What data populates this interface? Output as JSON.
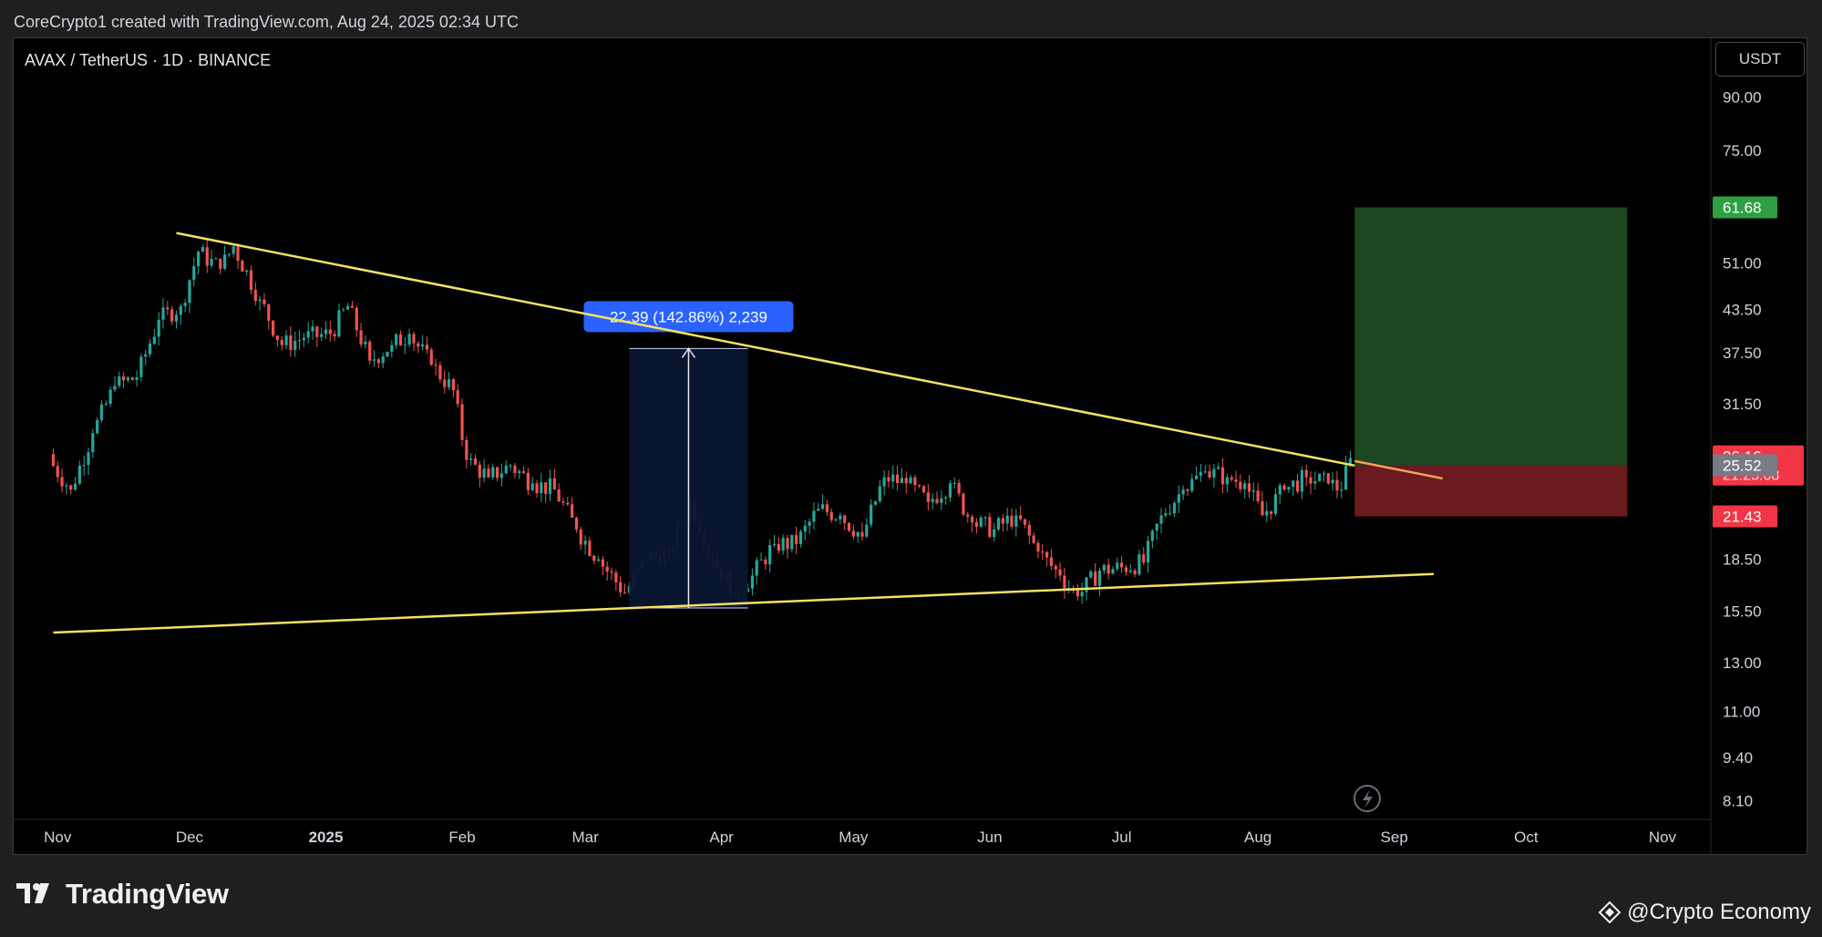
{
  "header": {
    "text": "CoreCrypto1 created with TradingView.com, Aug 24, 2025 02:34 UTC"
  },
  "symbol": {
    "title": "AVAX / TetherUS · 1D · BINANCE",
    "currency": "USDT"
  },
  "branding": {
    "logo_text": "TradingView",
    "credit_text": "@Crypto Economy"
  },
  "colors": {
    "up": "#26a69a",
    "down": "#ef5350",
    "trendline": "#f5e063",
    "profit_zone": "#1e4620",
    "loss_zone": "#6b1a1f",
    "measure_label": "#2962ff"
  },
  "chart_data": {
    "type": "candlestick",
    "y_scale": "log",
    "ylim": [
      7.6,
      110
    ],
    "y_ticks": [
      "90.00",
      "75.00",
      "61.68",
      "51.00",
      "43.50",
      "37.50",
      "31.50",
      "26.16",
      "25.52",
      "21.43",
      "18.50",
      "15.50",
      "13.00",
      "11.00",
      "9.40",
      "8.10"
    ],
    "x_ticks": [
      "Nov",
      "Dec",
      "2025",
      "Feb",
      "Mar",
      "Apr",
      "May",
      "Jun",
      "Jul",
      "Aug",
      "Sep",
      "Oct",
      "Nov"
    ],
    "price_labels": [
      {
        "value": "61.68",
        "kind": "target",
        "color": "#2ea043"
      },
      {
        "value": "26.16",
        "sub": "21:25:08",
        "kind": "last",
        "color": "#f23645"
      },
      {
        "value": "25.52",
        "kind": "entry",
        "color": "#787b86"
      },
      {
        "value": "21.43",
        "kind": "stop",
        "color": "#f23645"
      }
    ],
    "measure": {
      "label": "22.39 (142.86%) 2,239",
      "from_date": "2025-03-11",
      "to_date": "2025-04-07",
      "low": 15.67,
      "high": 38.06
    },
    "trendlines": [
      {
        "name": "upper",
        "from": [
          "2024-11-28",
          56.5
        ],
        "to": [
          "2025-08-23",
          25.5
        ]
      },
      {
        "name": "lower",
        "from": [
          "2024-10-31",
          14.4
        ],
        "to": [
          "2025-09-10",
          17.6
        ]
      }
    ],
    "position": {
      "entry": 25.52,
      "target": 61.68,
      "stop": 21.43,
      "from_date": "2025-08-23",
      "to_date": "2025-10-24"
    },
    "series_close": [
      {
        "date": "2024-10-31",
        "close": 26.0
      },
      {
        "date": "2024-11-05",
        "close": 23.5
      },
      {
        "date": "2024-11-10",
        "close": 28.5
      },
      {
        "date": "2024-11-15",
        "close": 33.5
      },
      {
        "date": "2024-11-20",
        "close": 34.5
      },
      {
        "date": "2024-11-25",
        "close": 42.0
      },
      {
        "date": "2024-11-30",
        "close": 44.0
      },
      {
        "date": "2024-12-04",
        "close": 53.0
      },
      {
        "date": "2024-12-09",
        "close": 50.0
      },
      {
        "date": "2024-12-12",
        "close": 54.0
      },
      {
        "date": "2024-12-18",
        "close": 45.0
      },
      {
        "date": "2024-12-23",
        "close": 38.5
      },
      {
        "date": "2024-12-28",
        "close": 39.5
      },
      {
        "date": "2025-01-03",
        "close": 40.0
      },
      {
        "date": "2025-01-07",
        "close": 44.0
      },
      {
        "date": "2025-01-12",
        "close": 36.5
      },
      {
        "date": "2025-01-17",
        "close": 38.5
      },
      {
        "date": "2025-01-21",
        "close": 40.0
      },
      {
        "date": "2025-01-26",
        "close": 36.0
      },
      {
        "date": "2025-01-31",
        "close": 33.0
      },
      {
        "date": "2025-02-03",
        "close": 26.0
      },
      {
        "date": "2025-02-08",
        "close": 24.5
      },
      {
        "date": "2025-02-13",
        "close": 25.5
      },
      {
        "date": "2025-02-18",
        "close": 24.0
      },
      {
        "date": "2025-02-23",
        "close": 23.5
      },
      {
        "date": "2025-02-28",
        "close": 20.5
      },
      {
        "date": "2025-03-05",
        "close": 18.5
      },
      {
        "date": "2025-03-11",
        "close": 16.5
      },
      {
        "date": "2025-03-16",
        "close": 18.5
      },
      {
        "date": "2025-03-21",
        "close": 19.0
      },
      {
        "date": "2025-03-26",
        "close": 22.5
      },
      {
        "date": "2025-03-31",
        "close": 18.5
      },
      {
        "date": "2025-04-05",
        "close": 16.5
      },
      {
        "date": "2025-04-09",
        "close": 17.5
      },
      {
        "date": "2025-04-14",
        "close": 19.5
      },
      {
        "date": "2025-04-19",
        "close": 19.5
      },
      {
        "date": "2025-04-24",
        "close": 22.0
      },
      {
        "date": "2025-04-29",
        "close": 21.5
      },
      {
        "date": "2025-05-04",
        "close": 20.0
      },
      {
        "date": "2025-05-09",
        "close": 24.5
      },
      {
        "date": "2025-05-14",
        "close": 24.0
      },
      {
        "date": "2025-05-19",
        "close": 22.5
      },
      {
        "date": "2025-05-24",
        "close": 24.0
      },
      {
        "date": "2025-05-29",
        "close": 21.0
      },
      {
        "date": "2025-06-03",
        "close": 20.5
      },
      {
        "date": "2025-06-08",
        "close": 21.5
      },
      {
        "date": "2025-06-13",
        "close": 19.0
      },
      {
        "date": "2025-06-18",
        "close": 17.5
      },
      {
        "date": "2025-06-22",
        "close": 16.3
      },
      {
        "date": "2025-06-27",
        "close": 17.8
      },
      {
        "date": "2025-07-02",
        "close": 18.0
      },
      {
        "date": "2025-07-07",
        "close": 18.3
      },
      {
        "date": "2025-07-11",
        "close": 21.5
      },
      {
        "date": "2025-07-16",
        "close": 23.5
      },
      {
        "date": "2025-07-21",
        "close": 25.0
      },
      {
        "date": "2025-07-26",
        "close": 24.5
      },
      {
        "date": "2025-07-30",
        "close": 24.0
      },
      {
        "date": "2025-08-03",
        "close": 21.5
      },
      {
        "date": "2025-08-08",
        "close": 23.5
      },
      {
        "date": "2025-08-13",
        "close": 24.5
      },
      {
        "date": "2025-08-18",
        "close": 24.0
      },
      {
        "date": "2025-08-21",
        "close": 23.5
      },
      {
        "date": "2025-08-23",
        "close": 26.16
      }
    ]
  }
}
